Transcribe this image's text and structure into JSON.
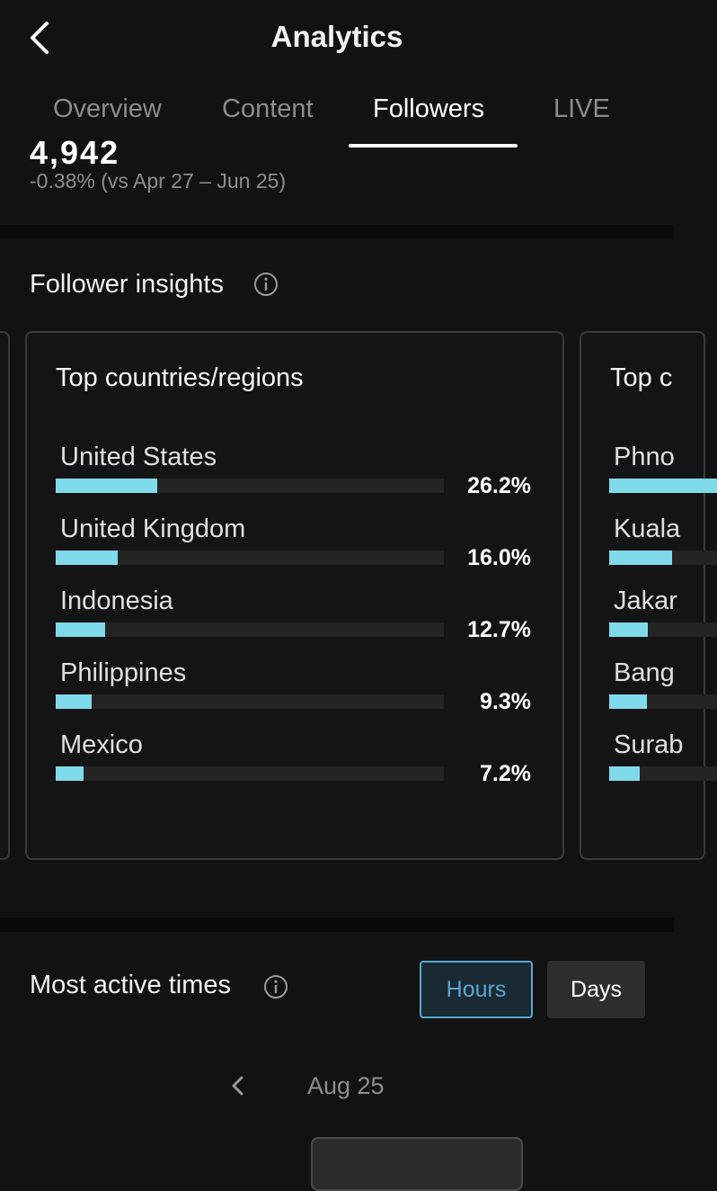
{
  "header": {
    "title": "Analytics",
    "back_icon": "chevron-left-icon"
  },
  "tabs": [
    {
      "label": "Overview",
      "active": false
    },
    {
      "label": "Content",
      "active": false
    },
    {
      "label": "Followers",
      "active": true
    },
    {
      "label": "LIVE",
      "active": false
    }
  ],
  "metric": {
    "value_partial": "4,942",
    "change_text": "-0.38% (vs Apr 27 – Jun 25)"
  },
  "follower_insights": {
    "title": "Follower insights",
    "info_icon": "info-icon",
    "countries_card": {
      "title": "Top countries/regions",
      "rows": [
        {
          "label": "United States",
          "percent": 26.2,
          "percent_label": "26.2%"
        },
        {
          "label": "United Kingdom",
          "percent": 16.0,
          "percent_label": "16.0%"
        },
        {
          "label": "Indonesia",
          "percent": 12.7,
          "percent_label": "12.7%"
        },
        {
          "label": "Philippines",
          "percent": 9.3,
          "percent_label": "9.3%"
        },
        {
          "label": "Mexico",
          "percent": 7.2,
          "percent_label": "7.2%"
        }
      ]
    },
    "cities_card_partial": {
      "title": "Top c",
      "rows": [
        {
          "label": "Phno"
        },
        {
          "label": "Kuala"
        },
        {
          "label": "Jakar"
        },
        {
          "label": "Bang"
        },
        {
          "label": "Surab"
        }
      ]
    }
  },
  "most_active_times": {
    "title": "Most active times",
    "info_icon": "info-icon",
    "toggle": {
      "hours_label": "Hours",
      "days_label": "Days",
      "selected": "Hours"
    },
    "date_nav": {
      "prev_icon": "chevron-left-icon",
      "date_label": "Aug 25"
    }
  },
  "colors": {
    "background": "#121212",
    "bar_fill": "#7fdbeb",
    "bar_track": "#242424",
    "accent_selected": "#5ba7cf"
  }
}
